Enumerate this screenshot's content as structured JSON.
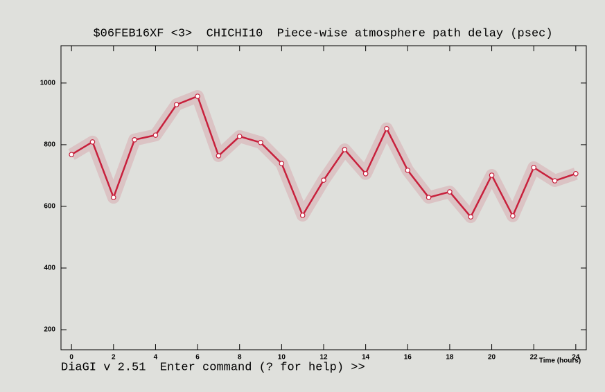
{
  "chart_data": {
    "type": "line",
    "title": "$06FEB16XF <3>  CHICHI10  Piece-wise atmosphere path delay (psec)",
    "x_label": "Time (hours)",
    "x": [
      0,
      1,
      2,
      3,
      4,
      5,
      6,
      7,
      8,
      9,
      10,
      11,
      12,
      13,
      14,
      15,
      16,
      17,
      18,
      19,
      20,
      21,
      22,
      23,
      24
    ],
    "values": [
      768,
      809,
      629,
      816,
      831,
      930,
      957,
      764,
      827,
      807,
      739,
      571,
      685,
      784,
      706,
      852,
      717,
      629,
      647,
      566,
      701,
      569,
      726,
      683,
      706
    ],
    "color": "#c8203c",
    "xlim": [
      -0.5,
      24.5
    ],
    "xticks": [
      0,
      2,
      4,
      6,
      8,
      10,
      12,
      14,
      16,
      18,
      20,
      22,
      24
    ],
    "ylim": [
      135,
      1121
    ],
    "yticks": [
      200,
      400,
      600,
      800,
      1000
    ]
  },
  "status_bar": "DiaGI v 2.51  Enter command (? for help) >>"
}
